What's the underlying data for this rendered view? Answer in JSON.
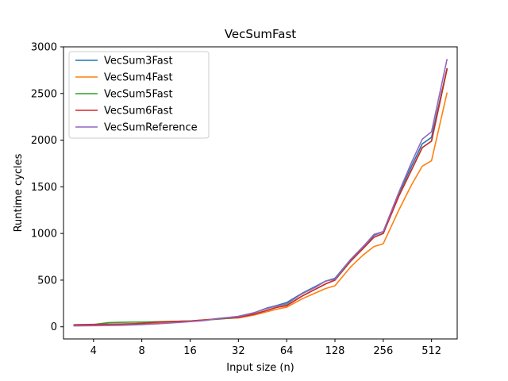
{
  "chart_data": {
    "type": "line",
    "title": "VecSumFast",
    "xlabel": "Input size (n)",
    "ylabel": "Runtime cycles",
    "x_scale": "log2",
    "x": [
      3,
      4,
      5,
      6,
      7,
      8,
      10,
      12,
      14,
      16,
      20,
      24,
      28,
      32,
      40,
      48,
      56,
      64,
      80,
      96,
      112,
      128,
      160,
      192,
      224,
      256,
      320,
      384,
      448,
      512,
      640
    ],
    "x_ticks": [
      4,
      8,
      16,
      32,
      64,
      128,
      256,
      512
    ],
    "x_tick_labels": [
      "4",
      "8",
      "16",
      "32",
      "64",
      "128",
      "256",
      "512"
    ],
    "xlim": [
      2.6,
      740
    ],
    "ylim": [
      -130,
      3000
    ],
    "y_ticks": [
      0,
      500,
      1000,
      1500,
      2000,
      2500,
      3000
    ],
    "y_tick_labels": [
      "0",
      "500",
      "1000",
      "1500",
      "2000",
      "2500",
      "3000"
    ],
    "legend_position": "top-left",
    "grid": false,
    "series": [
      {
        "name": "VecSum3Fast",
        "color": "#1f77b4",
        "values": [
          15,
          18,
          20,
          22,
          25,
          30,
          38,
          45,
          52,
          58,
          72,
          90,
          100,
          112,
          150,
          200,
          230,
          260,
          360,
          430,
          490,
          520,
          720,
          860,
          980,
          1020,
          1430,
          1720,
          1960,
          2030,
          2770
        ]
      },
      {
        "name": "VecSum4Fast",
        "color": "#ff7f0e",
        "values": [
          20,
          22,
          25,
          28,
          32,
          38,
          45,
          50,
          55,
          62,
          75,
          85,
          90,
          95,
          125,
          160,
          190,
          210,
          300,
          360,
          410,
          440,
          640,
          770,
          860,
          890,
          1250,
          1520,
          1720,
          1780,
          2510
        ]
      },
      {
        "name": "VecSum5Fast",
        "color": "#2ca02c",
        "values": [
          20,
          24,
          45,
          48,
          50,
          50,
          55,
          58,
          60,
          62,
          72,
          82,
          92,
          100,
          135,
          175,
          210,
          230,
          330,
          400,
          460,
          500,
          700,
          840,
          960,
          1000,
          1400,
          1680,
          1920,
          1990,
          2760
        ]
      },
      {
        "name": "VecSum6Fast",
        "color": "#d62728",
        "values": [
          22,
          26,
          28,
          30,
          32,
          35,
          50,
          55,
          60,
          62,
          75,
          85,
          95,
          100,
          135,
          175,
          210,
          225,
          330,
          400,
          460,
          500,
          705,
          840,
          960,
          1000,
          1400,
          1680,
          1920,
          1990,
          2770
        ]
      },
      {
        "name": "VecSumReference",
        "color": "#9467bd",
        "values": [
          10,
          12,
          14,
          16,
          20,
          24,
          32,
          40,
          48,
          55,
          68,
          88,
          100,
          110,
          150,
          195,
          225,
          245,
          355,
          420,
          490,
          510,
          720,
          860,
          990,
          1020,
          1440,
          1760,
          2010,
          2090,
          2870
        ]
      }
    ]
  }
}
